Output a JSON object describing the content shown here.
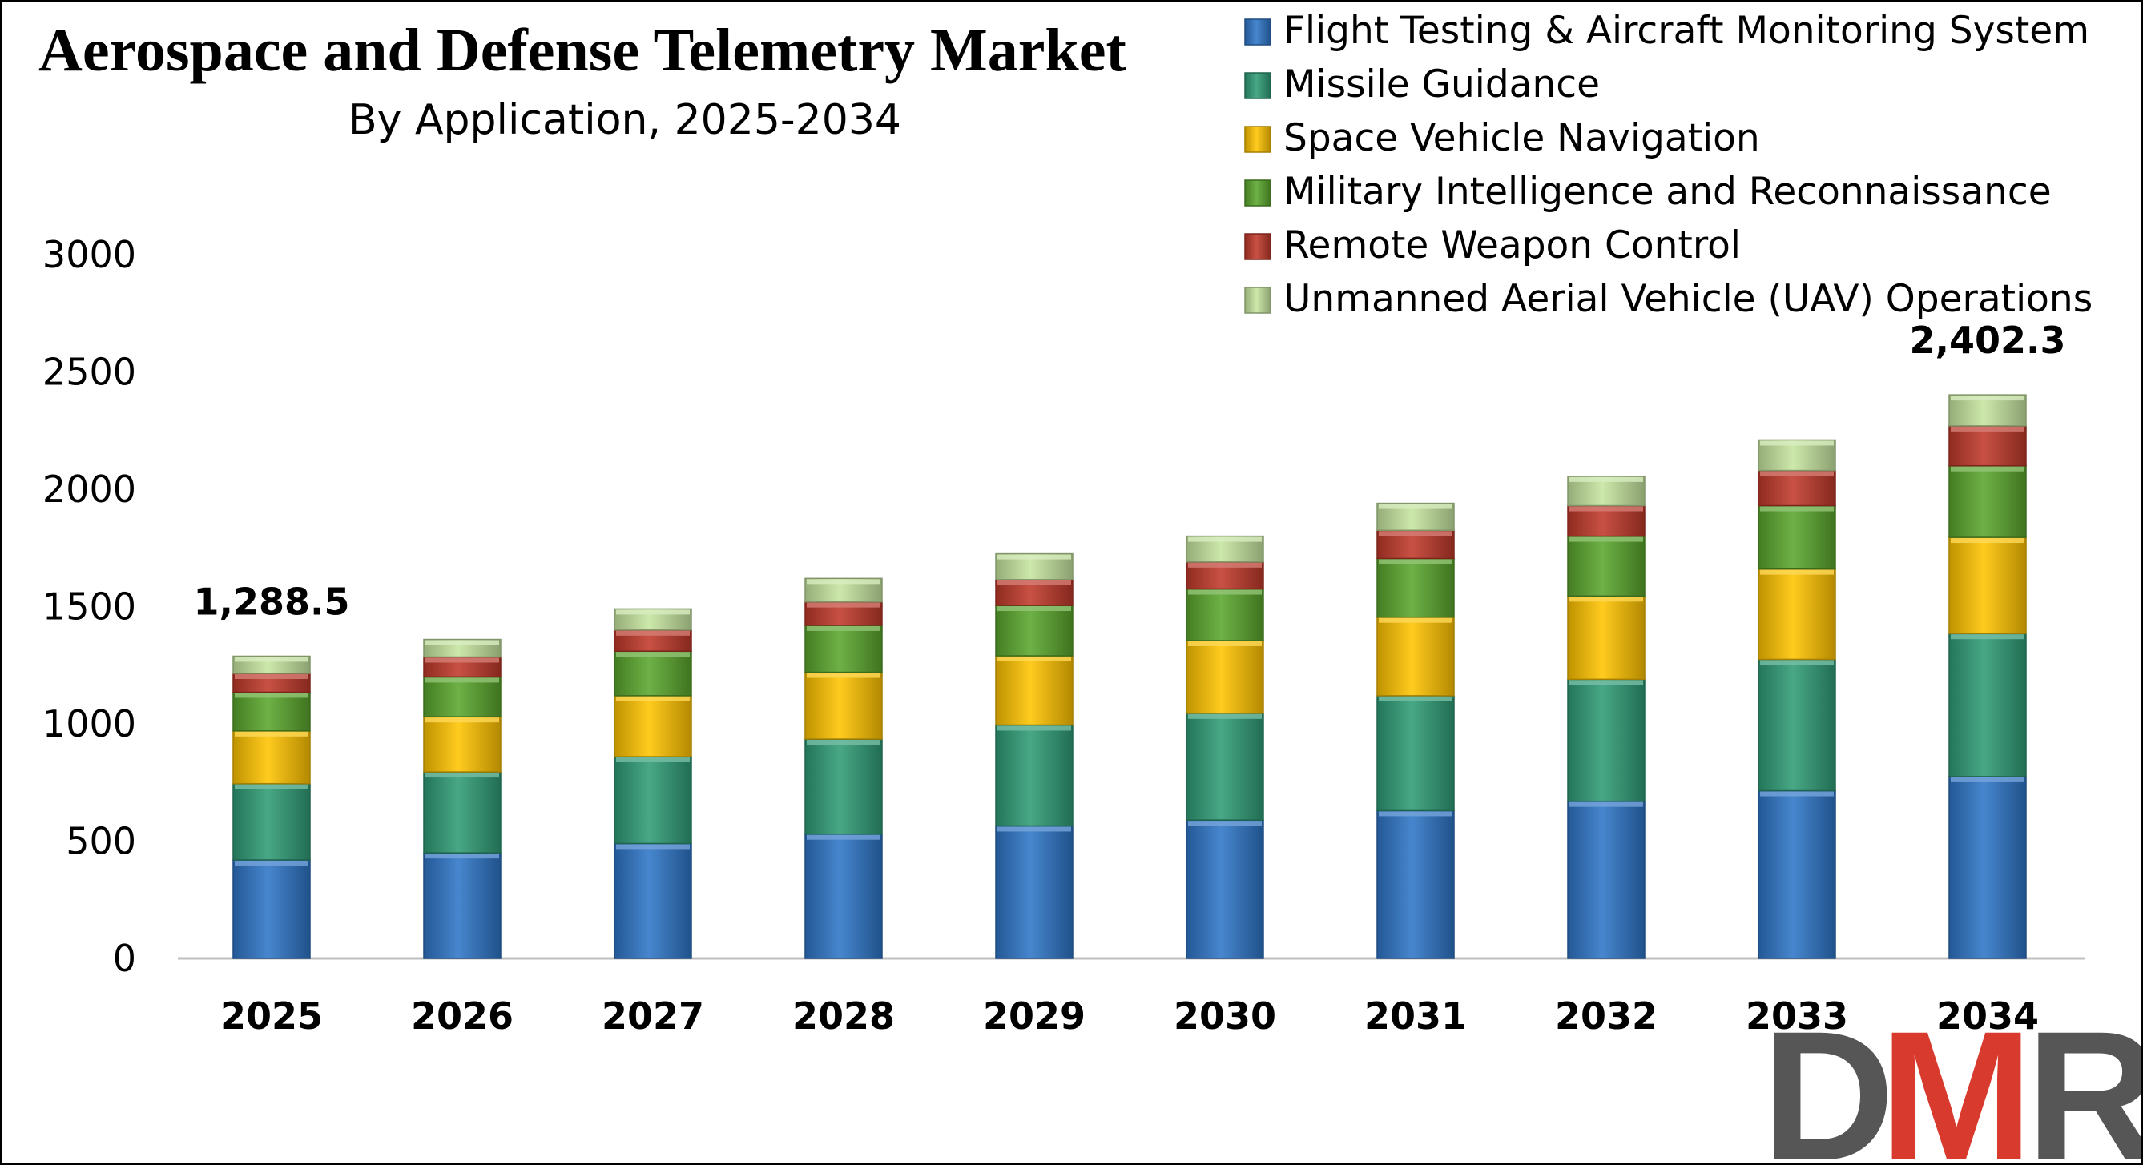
{
  "chart_data": {
    "type": "bar",
    "stacked": true,
    "title": "Aerospace and Defense Telemetry Market",
    "subtitle": "By Application, 2025-2034",
    "xlabel": "",
    "ylabel": "",
    "ylim": [
      0,
      3000
    ],
    "yticks": [
      0,
      500,
      1000,
      1500,
      2000,
      2500,
      3000
    ],
    "categories": [
      "2025",
      "2026",
      "2027",
      "2028",
      "2029",
      "2030",
      "2031",
      "2032",
      "2033",
      "2034"
    ],
    "series": [
      {
        "name": "Flight Testing & Aircraft Monitoring System",
        "color": "#2e75c7",
        "values": [
          420,
          450,
          490,
          530,
          565,
          590,
          630,
          670,
          715,
          775
        ]
      },
      {
        "name": "Missile Guidance",
        "color": "#2f9c76",
        "values": [
          325,
          345,
          370,
          405,
          430,
          455,
          490,
          520,
          560,
          610
        ]
      },
      {
        "name": "Space Vehicle Navigation",
        "color": "#ffc400",
        "values": [
          225,
          235,
          260,
          285,
          295,
          310,
          335,
          355,
          385,
          410
        ]
      },
      {
        "name": "Military Intelligence and Reconnaissance",
        "color": "#5aa62d",
        "values": [
          165,
          170,
          190,
          200,
          215,
          220,
          250,
          255,
          270,
          305
        ]
      },
      {
        "name": "Remote Weapon Control",
        "color": "#c0392b",
        "values": [
          80,
          85,
          90,
          100,
          110,
          115,
          120,
          130,
          150,
          170
        ]
      },
      {
        "name": "Unmanned Aerial Vehicle (UAV) Operations",
        "color": "#c6e5a0",
        "values": [
          73.5,
          75,
          90,
          100,
          110,
          110,
          115,
          125,
          130,
          132.3
        ]
      }
    ],
    "data_labels": [
      {
        "category": "2025",
        "text": "1,288.5"
      },
      {
        "category": "2034",
        "text": "2,402.3"
      }
    ],
    "legend_position": "top-right",
    "grid": false
  },
  "brand": {
    "logo_text": "DMR",
    "logo_color_dark": "#565656",
    "logo_color_accent": "#d83a2e"
  }
}
